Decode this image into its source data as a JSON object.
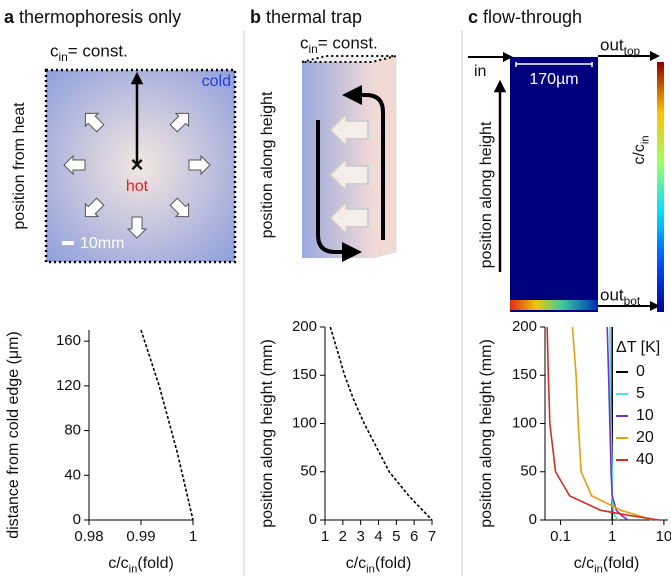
{
  "panels": [
    {
      "letter": "a",
      "title": "thermophoresis only"
    },
    {
      "letter": "b",
      "title": "thermal trap"
    },
    {
      "letter": "c",
      "title": "flow-through"
    }
  ],
  "illustrations": {
    "a": {
      "cin": {
        "main": "c",
        "sub": "in",
        "suffix": " = const."
      },
      "cold": "cold",
      "hot": "hot",
      "y_label": "position from heat",
      "scale": "10mm"
    },
    "b": {
      "cin": {
        "main": "c",
        "sub": "in",
        "suffix": " = const."
      },
      "y_label": "position along height"
    },
    "c": {
      "in": "in",
      "out_top": {
        "main": "out",
        "sub": "top"
      },
      "out_bot": {
        "main": "out",
        "sub": "bot"
      },
      "width": "170µm",
      "y_label": "position along height",
      "colorbar": {
        "main": "c/c",
        "sub": "in"
      }
    }
  },
  "chart_data": [
    {
      "type": "line",
      "y_label": "distance from cold edge (μm)",
      "x_label": {
        "main": "c/c",
        "sub": "in",
        "suffix": "(fold)"
      },
      "xlim": [
        0.98,
        1
      ],
      "xticks": [
        0.98,
        0.99,
        1
      ],
      "ylim": [
        0,
        170
      ],
      "yticks": [
        0,
        40,
        80,
        120,
        160
      ],
      "y": [
        170,
        120,
        60,
        0
      ],
      "series": [
        {
          "color": "#000000",
          "linestyle": "dashed",
          "values": [
            0.99,
            0.9935,
            0.997,
            1
          ]
        }
      ]
    },
    {
      "type": "line",
      "y_label": "position along height (mm)",
      "x_label": {
        "main": "c/c",
        "sub": "in",
        "suffix": "(fold)"
      },
      "xlim": [
        1,
        7
      ],
      "xticks": [
        1,
        2,
        3,
        4,
        5,
        6,
        7
      ],
      "ylim": [
        0,
        200
      ],
      "yticks": [
        0,
        50,
        100,
        150,
        200
      ],
      "y": [
        200,
        175,
        150,
        125,
        100,
        75,
        50,
        25,
        0
      ],
      "series": [
        {
          "color": "#000000",
          "linestyle": "dashed",
          "values": [
            1.3,
            1.7,
            2.1,
            2.6,
            3.2,
            3.9,
            4.6,
            5.7,
            7
          ]
        }
      ]
    },
    {
      "type": "line",
      "y_label": "position along height (mm)",
      "x_label": {
        "main": "c/c",
        "sub": "in",
        "suffix": "(fold)"
      },
      "x_log": true,
      "xlim": [
        0.05,
        12
      ],
      "xticks": [
        0.1,
        1,
        10
      ],
      "ylim": [
        0,
        200
      ],
      "yticks": [
        0,
        50,
        100,
        150,
        200
      ],
      "legend_title": "ΔT [K]",
      "y": [
        200,
        150,
        100,
        50,
        25,
        10,
        5,
        0
      ],
      "series": [
        {
          "name": "0",
          "color": "#000000",
          "linestyle": "solid",
          "values": [
            1,
            1,
            1,
            1,
            1,
            1,
            1,
            1
          ]
        },
        {
          "name": "5",
          "color": "#4fe0e0",
          "linestyle": "solid",
          "values": [
            0.9,
            0.92,
            0.95,
            1,
            1,
            1.05,
            1.1,
            1.3
          ]
        },
        {
          "name": "10",
          "color": "#7a2fbf",
          "linestyle": "solid",
          "values": [
            0.8,
            0.85,
            0.9,
            0.95,
            1,
            1.2,
            1.5,
            2
          ]
        },
        {
          "name": "20",
          "color": "#e0a010",
          "linestyle": "solid",
          "values": [
            0.17,
            0.2,
            0.22,
            0.25,
            0.4,
            1.5,
            3,
            6
          ]
        },
        {
          "name": "40",
          "color": "#d03020",
          "linestyle": "solid",
          "values": [
            0.055,
            0.058,
            0.062,
            0.08,
            0.15,
            0.6,
            2,
            8
          ]
        }
      ]
    }
  ]
}
